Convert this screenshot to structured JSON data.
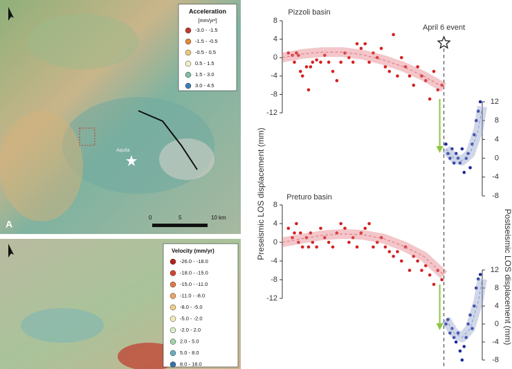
{
  "maps": {
    "acceleration_legend": {
      "title": "Acceleration",
      "unit": "[mm/yr²]",
      "items": [
        {
          "label": "-3.0 - -1.5",
          "color": "#c0392b"
        },
        {
          "label": "-1.5 - -0.5",
          "color": "#e08a3c"
        },
        {
          "label": "-0.5 - 0.5",
          "color": "#e9c97c"
        },
        {
          "label": "0.5 - 1.5",
          "color": "#f2eec4"
        },
        {
          "label": "1.5 - 3.0",
          "color": "#80c0a2"
        },
        {
          "label": "3.0 - 4.5",
          "color": "#3b7fb2"
        }
      ]
    },
    "velocity_legend": {
      "title": "Velocity (mm/yr)",
      "items": [
        {
          "label": "-26.0 - -18.0",
          "color": "#b3221b"
        },
        {
          "label": "-18.0 - -15.0",
          "color": "#d2452e"
        },
        {
          "label": "-15.0 - -11.0",
          "color": "#e27a45"
        },
        {
          "label": "-11.0 - -8.0",
          "color": "#eba65d"
        },
        {
          "label": "-8.0 - -5.0",
          "color": "#f1cf86"
        },
        {
          "label": "-5.0 - -2.0",
          "color": "#f3eab6"
        },
        {
          "label": "-2.0 - 2.0",
          "color": "#d7ecc9"
        },
        {
          "label": "2.0 - 5.0",
          "color": "#9fd3a8"
        },
        {
          "label": "5.0 - 8.0",
          "color": "#6aaec0"
        },
        {
          "label": "8.0 - 18.0",
          "color": "#3474a8"
        }
      ]
    },
    "panel_label": "A",
    "scale_labels": [
      "0",
      "5",
      "10 km"
    ],
    "place_label": "Aquila"
  },
  "chart_data": [
    {
      "type": "scatter",
      "title": "Pizzoli basin",
      "y_label": "Preseismic LOS displacement (mm)",
      "y2_label": "Postseismic LOS displacement (mm)",
      "annotation": "April 6 event",
      "event_x": 80,
      "xlim": [
        0,
        100
      ],
      "ylim": [
        -12,
        8
      ],
      "yticks": [
        -12,
        -8,
        -4,
        0,
        4,
        8
      ],
      "y2lim": [
        -8,
        12
      ],
      "y2ticks": [
        -8,
        -4,
        0,
        4,
        8,
        12
      ],
      "series": [
        {
          "mode": "markers",
          "color": "#d42020",
          "x": [
            3,
            5,
            6,
            7,
            8,
            9,
            10,
            12,
            13,
            14,
            15,
            17,
            19,
            21,
            23,
            25,
            27,
            29,
            31,
            33,
            35,
            37,
            39,
            41,
            43,
            45,
            47,
            49,
            51,
            53,
            55,
            57,
            59,
            61,
            63,
            65,
            67,
            69,
            71,
            73,
            75,
            77,
            79
          ],
          "values": [
            1,
            0.5,
            -1,
            1,
            0.5,
            -3,
            -4,
            -2,
            -7,
            -2,
            -1,
            -0.5,
            -1,
            0.5,
            -1,
            -3,
            -5,
            -1,
            1,
            0,
            -1,
            3,
            2,
            3,
            -1,
            1,
            0,
            2,
            -2,
            -3,
            5,
            -4,
            0,
            -2,
            -4,
            -6,
            -2,
            -4,
            -5,
            -9,
            -3,
            -7,
            -6
          ]
        },
        {
          "mode": "band",
          "color": "#e0707a",
          "x": [
            0,
            10,
            20,
            30,
            40,
            50,
            60,
            70,
            80
          ],
          "values": [
            0,
            0.8,
            1.2,
            1.2,
            0.6,
            -0.5,
            -2,
            -4,
            -6.5
          ]
        },
        {
          "mode": "markers",
          "color": "#1a2a9a",
          "axis": "y2",
          "x": [
            81,
            82,
            83,
            84,
            85,
            86,
            87,
            88,
            89,
            90,
            91,
            92,
            93,
            94,
            95,
            96,
            97,
            98
          ],
          "values": [
            3,
            1,
            0,
            2,
            -1,
            1,
            0,
            -1,
            2,
            -3,
            0,
            1,
            -2,
            3,
            5,
            8,
            10,
            12
          ]
        },
        {
          "mode": "band",
          "color": "#8a9ac8",
          "axis": "y2",
          "x": [
            81,
            85,
            89,
            93,
            97,
            99
          ],
          "values": [
            2,
            0,
            -0.5,
            1,
            6,
            11
          ]
        }
      ]
    },
    {
      "type": "scatter",
      "title": "Preturo basin",
      "event_x": 80,
      "xlim": [
        0,
        100
      ],
      "ylim": [
        -12,
        8
      ],
      "yticks": [
        -12,
        -8,
        -4,
        0,
        4,
        8
      ],
      "y2lim": [
        -8,
        12
      ],
      "y2ticks": [
        -8,
        -4,
        0,
        4,
        8,
        12
      ],
      "series": [
        {
          "mode": "markers",
          "color": "#d42020",
          "x": [
            3,
            5,
            6,
            7,
            8,
            9,
            10,
            12,
            13,
            14,
            15,
            17,
            19,
            21,
            23,
            25,
            27,
            29,
            31,
            33,
            35,
            37,
            39,
            41,
            43,
            45,
            47,
            49,
            51,
            53,
            55,
            57,
            59,
            61,
            63,
            65,
            67,
            69,
            71,
            73,
            75,
            77,
            79
          ],
          "values": [
            3,
            1,
            2,
            4,
            0,
            2,
            -1,
            1,
            -1,
            2,
            0,
            -1,
            3,
            1,
            0,
            -1,
            2,
            4,
            3,
            0,
            1,
            -1,
            2,
            3,
            4,
            -1,
            0,
            1,
            -1,
            -2,
            -3,
            -2,
            -4,
            -1,
            -6,
            -3,
            -4,
            -6,
            -5,
            -7,
            -9,
            -6,
            -8
          ]
        },
        {
          "mode": "band",
          "color": "#e0707a",
          "x": [
            0,
            10,
            20,
            30,
            40,
            50,
            60,
            70,
            80
          ],
          "values": [
            0,
            0.8,
            1.5,
            1.8,
            1.6,
            0.8,
            -0.8,
            -3,
            -7
          ]
        },
        {
          "mode": "markers",
          "color": "#1a2a9a",
          "axis": "y2",
          "x": [
            81,
            82,
            83,
            84,
            85,
            86,
            87,
            88,
            89,
            90,
            91,
            92,
            93,
            94,
            95,
            96,
            97,
            98
          ],
          "values": [
            0,
            1,
            -2,
            -1,
            -3,
            -4,
            -2,
            -6,
            -8,
            -5,
            -3,
            0,
            2,
            -1,
            4,
            8,
            10,
            11
          ]
        },
        {
          "mode": "band",
          "color": "#8a9ac8",
          "axis": "y2",
          "x": [
            81,
            85,
            89,
            93,
            97,
            99
          ],
          "values": [
            1,
            -2,
            -3,
            -1,
            5,
            10
          ]
        }
      ]
    }
  ]
}
